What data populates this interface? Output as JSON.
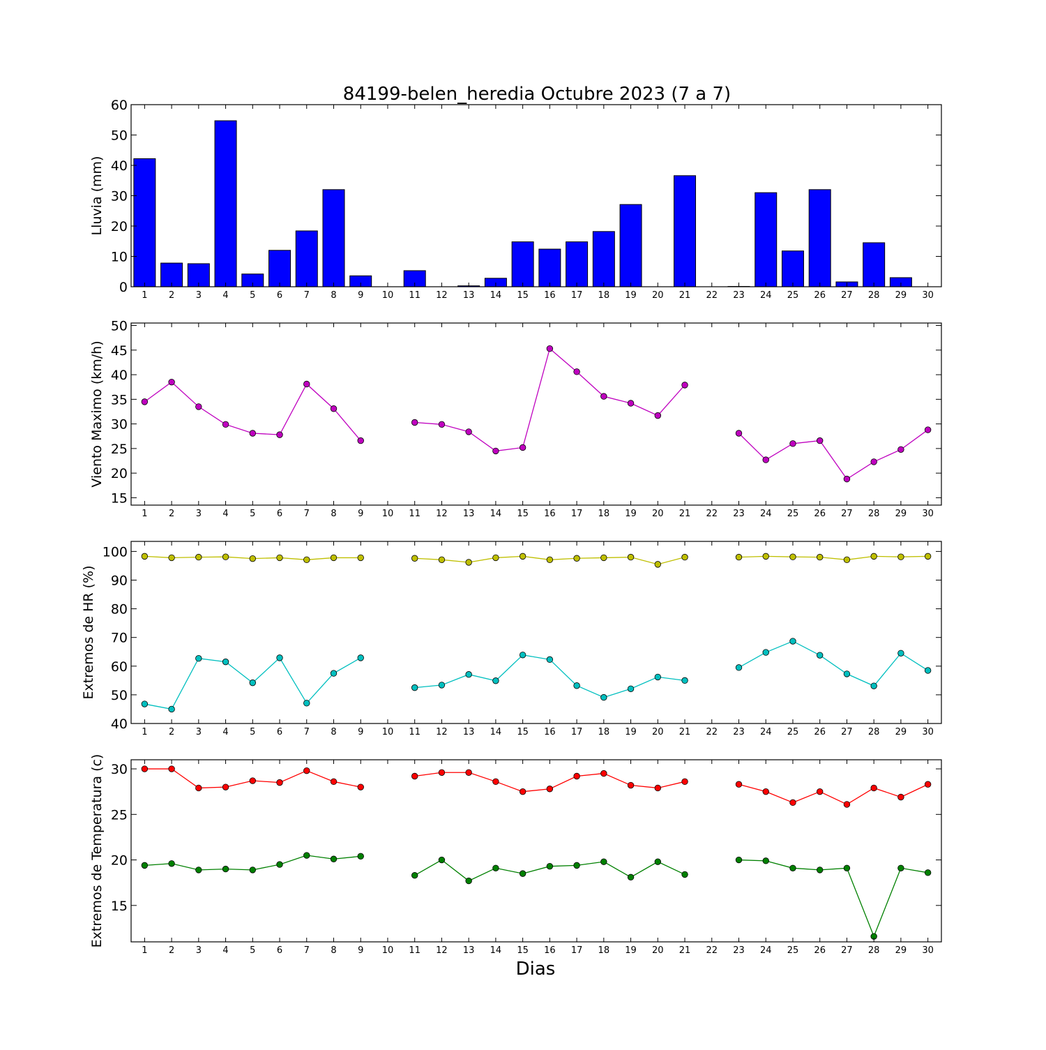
{
  "figure": {
    "title": "84199-belen_heredia Octubre 2023  (7 a 7)",
    "xlabel": "Dias"
  },
  "chart_data": [
    {
      "type": "bar",
      "panel": "lluvia",
      "ylabel": "Lluvia (mm)",
      "ylim": [
        0,
        60
      ],
      "yticks": [
        0,
        10,
        20,
        30,
        40,
        50,
        60
      ],
      "xlim": [
        0.5,
        30.5
      ],
      "categories": [
        "1",
        "2",
        "3",
        "4",
        "5",
        "6",
        "7",
        "8",
        "9",
        "10",
        "11",
        "12",
        "13",
        "14",
        "15",
        "16",
        "17",
        "18",
        "19",
        "20",
        "21",
        "22",
        "23",
        "24",
        "25",
        "26",
        "27",
        "28",
        "29",
        "30"
      ],
      "values": [
        42.2,
        7.8,
        7.6,
        54.7,
        4.2,
        12.0,
        18.4,
        32.0,
        3.6,
        0,
        5.3,
        0,
        0.3,
        2.8,
        14.8,
        12.4,
        14.8,
        18.2,
        27.1,
        0,
        36.6,
        0,
        0.1,
        31.0,
        11.8,
        32.0,
        1.6,
        14.5,
        3.0,
        0
      ],
      "color": "#0000ff"
    },
    {
      "type": "line",
      "panel": "viento",
      "ylabel": "Viento Maximo (km/h)",
      "ylim": [
        13.5,
        50.5
      ],
      "yticks": [
        15,
        20,
        25,
        30,
        35,
        40,
        45,
        50
      ],
      "xlim": [
        0.5,
        30.5
      ],
      "x": [
        1,
        2,
        3,
        4,
        5,
        6,
        7,
        8,
        9,
        10,
        11,
        12,
        13,
        14,
        15,
        16,
        17,
        18,
        19,
        20,
        21,
        22,
        23,
        24,
        25,
        26,
        27,
        28,
        29,
        30
      ],
      "series": [
        {
          "values": [
            34.5,
            38.5,
            33.5,
            29.9,
            28.1,
            27.8,
            38.1,
            33.1,
            26.6,
            null,
            30.3,
            29.9,
            28.4,
            24.5,
            25.2,
            45.3,
            40.6,
            35.6,
            34.2,
            31.7,
            37.9,
            null,
            28.1,
            22.7,
            26.0,
            26.6,
            18.8,
            22.3,
            24.8,
            28.8
          ],
          "color": "#bf00bf"
        }
      ]
    },
    {
      "type": "line",
      "panel": "humedad",
      "ylabel": "Extremos de HR (%)",
      "ylim": [
        40,
        103.5
      ],
      "yticks": [
        40,
        50,
        60,
        70,
        80,
        90,
        100
      ],
      "xlim": [
        0.5,
        30.5
      ],
      "x": [
        1,
        2,
        3,
        4,
        5,
        6,
        7,
        8,
        9,
        10,
        11,
        12,
        13,
        14,
        15,
        16,
        17,
        18,
        19,
        20,
        21,
        22,
        23,
        24,
        25,
        26,
        27,
        28,
        29,
        30
      ],
      "series": [
        {
          "values": [
            98.3,
            97.8,
            98.0,
            98.1,
            97.5,
            97.8,
            97.1,
            97.8,
            97.8,
            null,
            97.6,
            97.1,
            96.2,
            97.8,
            98.3,
            97.1,
            97.6,
            97.8,
            98.0,
            95.5,
            98.0,
            null,
            98.0,
            98.3,
            98.1,
            98.0,
            97.1,
            98.3,
            98.1,
            98.3
          ],
          "color": "#bfbf00"
        },
        {
          "values": [
            46.8,
            45.0,
            62.7,
            61.5,
            54.2,
            62.9,
            47.1,
            57.5,
            62.9,
            null,
            52.5,
            53.4,
            57.1,
            54.9,
            63.9,
            62.3,
            53.2,
            49.1,
            52.1,
            56.2,
            55.0,
            null,
            59.5,
            64.8,
            68.7,
            63.8,
            57.3,
            53.1,
            64.5,
            58.5
          ],
          "color": "#00bfbf"
        }
      ]
    },
    {
      "type": "line",
      "panel": "temperatura",
      "ylabel": "Extremos de Temperatura (c)",
      "ylim": [
        11,
        31
      ],
      "yticks": [
        15,
        20,
        25,
        30
      ],
      "xlim": [
        0.5,
        30.5
      ],
      "x": [
        1,
        2,
        3,
        4,
        5,
        6,
        7,
        8,
        9,
        10,
        11,
        12,
        13,
        14,
        15,
        16,
        17,
        18,
        19,
        20,
        21,
        22,
        23,
        24,
        25,
        26,
        27,
        28,
        29,
        30
      ],
      "series": [
        {
          "values": [
            30.0,
            30.0,
            27.9,
            28.0,
            28.7,
            28.5,
            29.8,
            28.6,
            28.0,
            null,
            29.2,
            29.6,
            29.6,
            28.6,
            27.5,
            27.8,
            29.2,
            29.5,
            28.2,
            27.9,
            28.6,
            null,
            28.3,
            27.5,
            26.3,
            27.5,
            26.1,
            27.9,
            26.9,
            28.3
          ],
          "color": "#ff0000"
        },
        {
          "values": [
            19.4,
            19.6,
            18.9,
            19.0,
            18.9,
            19.5,
            20.5,
            20.1,
            20.4,
            null,
            18.3,
            20.0,
            17.7,
            19.1,
            18.5,
            19.3,
            19.4,
            19.8,
            18.1,
            19.8,
            18.4,
            null,
            20.0,
            19.9,
            19.1,
            18.9,
            19.1,
            11.6,
            19.1,
            18.6
          ],
          "color": "#008000"
        }
      ]
    }
  ]
}
